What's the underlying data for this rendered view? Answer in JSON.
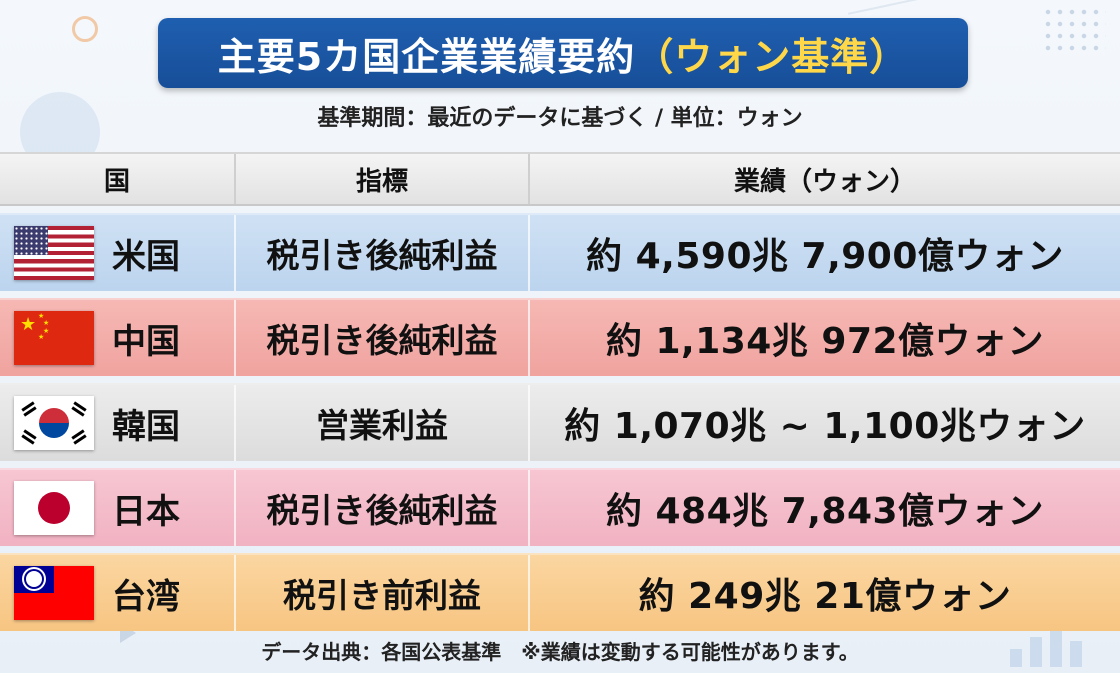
{
  "title": {
    "main": "主要5カ国企業業績要約",
    "accent": "（ウォン基準）"
  },
  "subtitle": "基準期間：最近のデータに基づく / 単位：ウォン",
  "table": {
    "headers": {
      "country": "国",
      "metric": "指標",
      "value": "業績（ウォン）"
    },
    "rows": [
      {
        "country": "米国",
        "flag": "us-flag-icon",
        "metric": "税引き後純利益",
        "value": "約 4,590兆 7,900億ウォン",
        "color": "#c6dbf1"
      },
      {
        "country": "中国",
        "flag": "china-flag-icon",
        "metric": "税引き後純利益",
        "value": "約 1,134兆 972億ウォン",
        "color": "#f3aea9"
      },
      {
        "country": "韓国",
        "flag": "korea-flag-icon",
        "metric": "営業利益",
        "value": "約 1,070兆 ~ 1,100兆ウォン",
        "color": "#e5e5e5"
      },
      {
        "country": "日本",
        "flag": "japan-flag-icon",
        "metric": "税引き後純利益",
        "value": "約 484兆 7,843億ウォン",
        "color": "#f4bcca"
      },
      {
        "country": "台湾",
        "flag": "taiwan-flag-icon",
        "metric": "税引き前利益",
        "value": "約 249兆 21億ウォン",
        "color": "#f9ce91"
      }
    ]
  },
  "footer": "データ出典：各国公表基準　※業績は変動する可能性があります。",
  "colors": {
    "title_bg": "#1f5fb0",
    "title_accent": "#ffd84a"
  }
}
